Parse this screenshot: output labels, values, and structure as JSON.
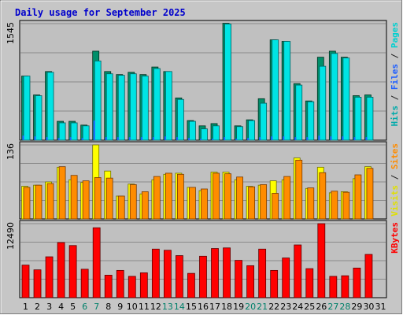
{
  "chart_data": {
    "type": "bar",
    "title": "Daily usage for September 2025",
    "colors": {
      "background": "#c0c0c0",
      "grid": "#8a8a8a",
      "hits": "#00e4e4",
      "files": "#008f6a",
      "pages": "#1f5fff",
      "visits": "#ffff00",
      "sites": "#ff8c00",
      "kbytes": "#ff0000",
      "title": "#0000cc",
      "weekend_label": "#00806a"
    },
    "days": [
      "1",
      "2",
      "3",
      "4",
      "5",
      "6",
      "7",
      "8",
      "9",
      "10",
      "11",
      "12",
      "13",
      "14",
      "15",
      "16",
      "17",
      "18",
      "19",
      "20",
      "21",
      "22",
      "23",
      "24",
      "25",
      "26",
      "27",
      "28",
      "29",
      "30",
      "31"
    ],
    "weekend_days": [
      "6",
      "7",
      "13",
      "14",
      "20",
      "21",
      "27",
      "28"
    ],
    "panels": [
      {
        "id": "hits-panel",
        "ymax_label": "1545",
        "ymax": 1545,
        "legend": [
          {
            "text": "Hits",
            "color": "#00aaaa"
          },
          {
            "text": " / ",
            "color": "#202020"
          },
          {
            "text": "Files",
            "color": "#1f5fff"
          },
          {
            "text": " / ",
            "color": "#202020"
          },
          {
            "text": "Pages",
            "color": "#00d0d0"
          }
        ],
        "series": [
          {
            "name": "Hits",
            "values": [
              850,
              590,
              900,
              230,
              230,
              190,
              1050,
              880,
              860,
              880,
              850,
              950,
              910,
              540,
              250,
              150,
              190,
              1540,
              180,
              260,
              490,
              1330,
              1310,
              730,
              510,
              980,
              1150,
              1090,
              570,
              570,
              0
            ]
          },
          {
            "name": "Files",
            "values": [
              850,
              600,
              910,
              250,
              250,
              200,
              1180,
              910,
              870,
              900,
              870,
              970,
              910,
              560,
              260,
              190,
              220,
              1550,
              190,
              270,
              550,
              1330,
              1310,
              750,
              520,
              1100,
              1180,
              1100,
              590,
              600,
              0
            ]
          },
          {
            "name": "Pages",
            "values": [
              60,
              50,
              40,
              30,
              40,
              30,
              260,
              40,
              40,
              40,
              40,
              40,
              50,
              40,
              30,
              20,
              20,
              40,
              20,
              30,
              40,
              50,
              50,
              40,
              40,
              60,
              50,
              50,
              40,
              40,
              0
            ]
          }
        ]
      },
      {
        "id": "visits-panel",
        "ymax_label": "136",
        "ymax": 136,
        "legend": [
          {
            "text": "Visits",
            "color": "#e0e000"
          },
          {
            "text": " / ",
            "color": "#202020"
          },
          {
            "text": "Sites",
            "color": "#ff8c00"
          }
        ],
        "series": [
          {
            "name": "Visits",
            "values": [
              60,
              62,
              68,
              95,
              72,
              67,
              136,
              88,
              42,
              64,
              46,
              72,
              82,
              84,
              58,
              52,
              86,
              86,
              72,
              60,
              62,
              70,
              72,
              112,
              56,
              95,
              48,
              50,
              74,
              96,
              0
            ]
          },
          {
            "name": "Sites",
            "values": [
              58,
              62,
              65,
              96,
              80,
              70,
              76,
              75,
              42,
              63,
              50,
              78,
              84,
              82,
              58,
              55,
              84,
              83,
              77,
              59,
              63,
              47,
              78,
              108,
              57,
              85,
              51,
              49,
              81,
              93,
              0
            ]
          }
        ]
      },
      {
        "id": "kbytes-panel",
        "ymax_label": "12490",
        "ymax": 12490,
        "legend": [
          {
            "text": "KBytes",
            "color": "#ff0000"
          }
        ],
        "series": [
          {
            "name": "KBytes",
            "values": [
              5500,
              4700,
              6900,
              9300,
              8800,
              4800,
              11800,
              3800,
              4600,
              3600,
              4200,
              8200,
              8000,
              7100,
              4100,
              7000,
              8300,
              8400,
              6300,
              5400,
              8200,
              4600,
              6700,
              8900,
              4900,
              12490,
              3600,
              3700,
              5000,
              7300,
              0
            ]
          }
        ]
      }
    ]
  }
}
